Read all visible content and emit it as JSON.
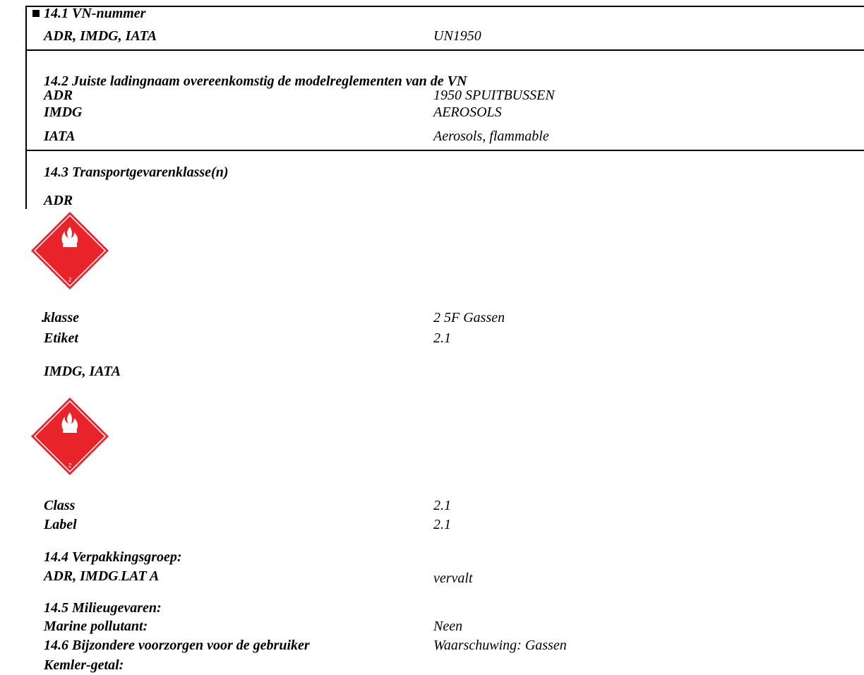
{
  "s141": {
    "heading": "14.1 VN-nummer",
    "label": "ADR, IMDG, IATA",
    "value": "UN1950"
  },
  "s142": {
    "heading": "14.2 Juiste ladingnaam overeenkomstig de modelreglementen van de VN",
    "rows": [
      {
        "label": "ADR",
        "value": "1950 SPUITBUSSEN"
      },
      {
        "label": "IMDG",
        "value": "AEROSOLS"
      },
      {
        "label": "IATA",
        "value": "Aerosols, flammable"
      }
    ]
  },
  "s143": {
    "heading": "14.3 Transportgevarenklasse(n)",
    "adr": {
      "title": "ADR",
      "label_icon": "flammable-gas-diamond-icon",
      "rows": [
        {
          "label": "klasse",
          "value": "2 5F Gassen"
        },
        {
          "label": "Etiket",
          "value": "2.1"
        }
      ]
    },
    "imdg_iata": {
      "title": "IMDG, IATA",
      "label_icon": "flammable-gas-diamond-icon",
      "rows": [
        {
          "label": "Class",
          "value": "2.1"
        },
        {
          "label": "Label",
          "value": "2.1"
        }
      ]
    }
  },
  "s144": {
    "heading": "14.4 Verpakkingsgroep:",
    "label_a": "ADR, IMDG",
    "label_b": "LAT A",
    "value": "vervalt"
  },
  "s145": {
    "heading": "14.5 Milieugevaren:",
    "label": "Marine pollutant:",
    "value": "Neen"
  },
  "s146": {
    "heading": "14.6 Bijzondere voorzorgen voor de gebruiker",
    "value": "Waarschuwing: Gassen",
    "label": "Kemler-getal:"
  },
  "colors": {
    "hazard_red": "#e8232a",
    "rule": "#000000"
  }
}
